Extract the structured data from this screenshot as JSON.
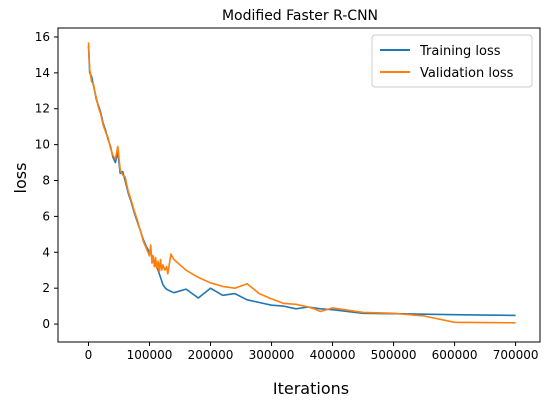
{
  "chart_data": {
    "type": "line",
    "title": "Modified Faster R-CNN",
    "xlabel": "Iterations",
    "ylabel": "loss",
    "xlim": [
      -50000,
      740000
    ],
    "ylim": [
      -1,
      16.5
    ],
    "xticks": [
      0,
      100000,
      200000,
      300000,
      400000,
      500000,
      600000,
      700000
    ],
    "xtick_labels": [
      "0",
      "100000",
      "200000",
      "300000",
      "400000",
      "500000",
      "600000",
      "700000"
    ],
    "yticks": [
      0,
      2,
      4,
      6,
      8,
      10,
      12,
      14,
      16
    ],
    "ytick_labels": [
      "0",
      "2",
      "4",
      "6",
      "8",
      "10",
      "12",
      "14",
      "16"
    ],
    "grid": false,
    "legend_position": "top-right",
    "series": [
      {
        "name": "Training loss",
        "color": "#1f77b4",
        "x": [
          0,
          2000,
          5000,
          8000,
          10000,
          13000,
          16000,
          20000,
          24000,
          28000,
          32000,
          36000,
          40000,
          44000,
          48000,
          52000,
          56000,
          60000,
          65000,
          70000,
          75000,
          80000,
          85000,
          90000,
          95000,
          100000,
          103000,
          106000,
          110000,
          114000,
          118000,
          122000,
          126000,
          130000,
          140000,
          160000,
          180000,
          200000,
          220000,
          240000,
          260000,
          280000,
          300000,
          320000,
          340000,
          360000,
          380000,
          400000,
          450000,
          500000,
          550000,
          600000,
          650000,
          700000
        ],
        "y": [
          15.5,
          14.0,
          13.8,
          13.3,
          13.0,
          12.5,
          12.2,
          11.8,
          11.2,
          10.8,
          10.3,
          9.9,
          9.3,
          9.0,
          9.6,
          8.4,
          8.5,
          8.0,
          7.3,
          6.8,
          6.2,
          5.7,
          5.2,
          4.7,
          4.3,
          4.0,
          3.9,
          3.5,
          3.3,
          3.0,
          2.6,
          2.2,
          2.0,
          1.9,
          1.75,
          1.95,
          1.45,
          2.0,
          1.6,
          1.7,
          1.35,
          1.2,
          1.05,
          1.0,
          0.85,
          0.95,
          0.85,
          0.8,
          0.6,
          0.58,
          0.55,
          0.52,
          0.5,
          0.48
        ]
      },
      {
        "name": "Validation loss",
        "color": "#ff7f0e",
        "x": [
          0,
          2000,
          5000,
          8000,
          10000,
          13000,
          16000,
          20000,
          24000,
          28000,
          32000,
          36000,
          40000,
          44000,
          48000,
          52000,
          56000,
          60000,
          65000,
          70000,
          75000,
          80000,
          85000,
          90000,
          95000,
          100000,
          102000,
          104000,
          106000,
          108000,
          110000,
          112000,
          114000,
          116000,
          118000,
          120000,
          122000,
          125000,
          128000,
          130000,
          135000,
          140000,
          160000,
          180000,
          200000,
          220000,
          240000,
          260000,
          280000,
          300000,
          320000,
          340000,
          360000,
          370000,
          380000,
          400000,
          450000,
          500000,
          550000,
          600000,
          650000,
          700000
        ],
        "y": [
          15.7,
          14.2,
          13.5,
          13.4,
          13.0,
          12.6,
          12.1,
          11.7,
          11.1,
          10.7,
          10.4,
          9.8,
          9.4,
          9.2,
          9.9,
          8.6,
          8.3,
          8.2,
          7.4,
          6.9,
          6.3,
          5.8,
          5.2,
          4.6,
          4.2,
          3.8,
          4.4,
          3.4,
          3.8,
          3.2,
          3.7,
          3.1,
          3.5,
          2.9,
          3.6,
          3.0,
          3.3,
          3.0,
          3.2,
          2.8,
          3.9,
          3.6,
          3.0,
          2.6,
          2.3,
          2.1,
          2.0,
          2.25,
          1.7,
          1.4,
          1.15,
          1.1,
          0.95,
          0.85,
          0.7,
          0.9,
          0.65,
          0.6,
          0.45,
          0.1,
          0.08,
          0.07
        ]
      }
    ]
  }
}
